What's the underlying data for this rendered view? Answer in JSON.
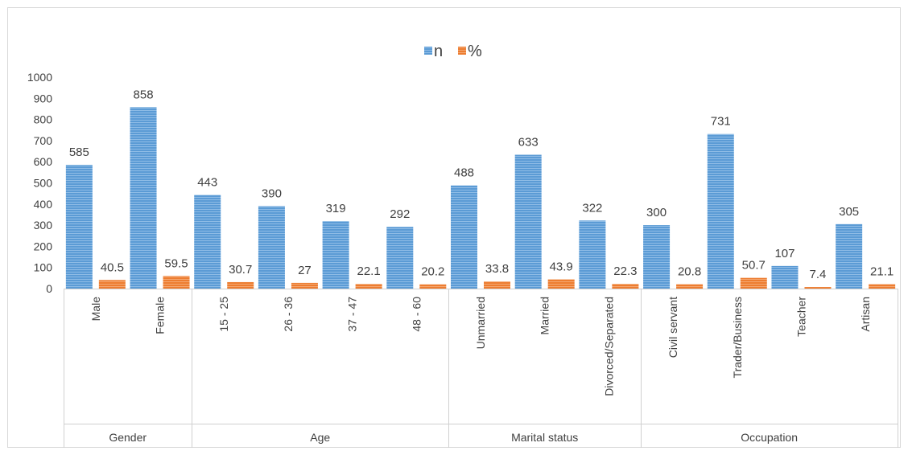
{
  "chart_data": {
    "type": "bar",
    "title": "",
    "xlabel": "",
    "ylabel": "",
    "ylim": [
      0,
      1000
    ],
    "yticks": [
      0,
      100,
      200,
      300,
      400,
      500,
      600,
      700,
      800,
      900,
      1000
    ],
    "grid": false,
    "legend": "top-center",
    "groups": [
      {
        "label": "Gender",
        "categories": [
          "Male",
          "Female"
        ]
      },
      {
        "label": "Age",
        "categories": [
          "15 - 25",
          "26 - 36",
          "37 - 47",
          "48 - 60"
        ]
      },
      {
        "label": "Marital status",
        "categories": [
          "Unmarried",
          "Married",
          "Divorced/Separated"
        ]
      },
      {
        "label": "Occupation",
        "categories": [
          "Civil servant",
          "Trader/Business",
          "Teacher",
          "Artisan"
        ]
      }
    ],
    "categories": [
      "Male",
      "Female",
      "15 - 25",
      "26 - 36",
      "37 - 47",
      "48 - 60",
      "Unmarried",
      "Married",
      "Divorced/Separated",
      "Civil servant",
      "Trader/Business",
      "Teacher",
      "Artisan"
    ],
    "series": [
      {
        "name": "n",
        "color": "#5b9bd5",
        "values": [
          585,
          858,
          443,
          390,
          319,
          292,
          488,
          633,
          322,
          300,
          731,
          107,
          305
        ]
      },
      {
        "name": "%",
        "color": "#ed7d31",
        "values": [
          40.5,
          59.5,
          30.7,
          27,
          22.1,
          20.2,
          33.8,
          43.9,
          22.3,
          20.8,
          50.7,
          7.4,
          21.1
        ]
      }
    ]
  }
}
